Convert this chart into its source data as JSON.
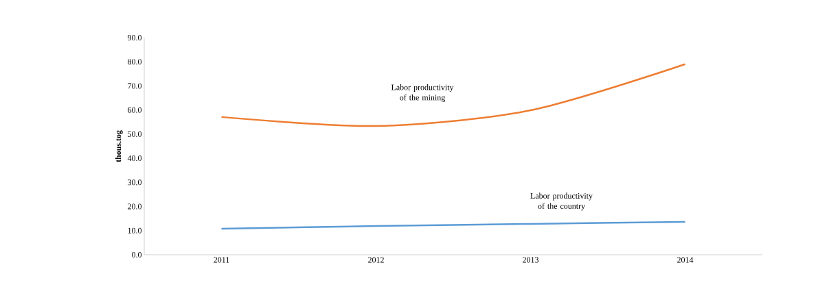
{
  "chart_data": {
    "type": "line",
    "ylabel": "thous.tog",
    "categories": [
      "2011",
      "2012",
      "2013",
      "2014"
    ],
    "series": [
      {
        "name": "Labor productivity of the mining",
        "color": "#ed7d31",
        "values": [
          57.1,
          53.4,
          59.9,
          79.0
        ]
      },
      {
        "name": "Labor productivity of the country",
        "color": "#5b9bd5",
        "values": [
          10.8,
          11.9,
          12.8,
          13.6
        ]
      }
    ],
    "ylim": [
      0,
      90
    ],
    "yticks": [
      {
        "value": 0,
        "label": "0.0"
      },
      {
        "value": 10,
        "label": "10.0"
      },
      {
        "value": 20,
        "label": "20.0"
      },
      {
        "value": 30,
        "label": "30.0"
      },
      {
        "value": 40,
        "label": "40.0"
      },
      {
        "value": 50,
        "label": "50.0"
      },
      {
        "value": 60,
        "label": "60.0"
      },
      {
        "value": 70,
        "label": "70.0"
      },
      {
        "value": 80,
        "label": "80.0"
      },
      {
        "value": 90,
        "label": "90.0"
      }
    ],
    "grid": false,
    "legend": false,
    "marker": "none",
    "line_style": "solid"
  }
}
